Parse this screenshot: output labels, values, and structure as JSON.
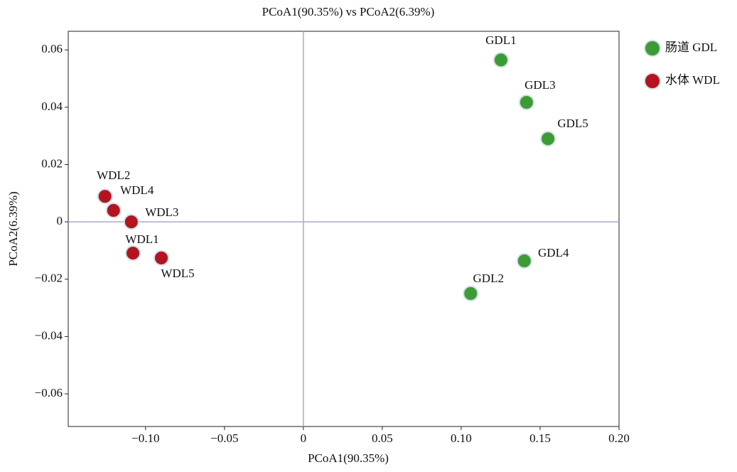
{
  "chart_data": {
    "type": "scatter",
    "title": "PCoA1(90.35%) vs PCoA2(6.39%)",
    "x_label": "PCoA1(90.35%)",
    "y_label": "PCoA2(6.39%)",
    "xlim": [
      -0.149,
      0.2
    ],
    "ylim": [
      -0.0714,
      0.0665
    ],
    "xticks": [
      {
        "value": -0.1,
        "label": "−0.10"
      },
      {
        "value": -0.05,
        "label": "−0.05"
      },
      0,
      0.05,
      {
        "value": 0.1,
        "label": "0.10"
      },
      0.15,
      {
        "value": 0.2,
        "label": "0.20"
      }
    ],
    "yticks": [
      {
        "value": -0.06,
        "label": "−0.06"
      },
      {
        "value": -0.04,
        "label": "−0.04"
      },
      {
        "value": -0.02,
        "label": "−0.02"
      },
      0,
      0.02,
      0.04,
      0.06
    ],
    "hline": 0,
    "vline": 0,
    "series": [
      {
        "name": "肠道 GDL",
        "color": "#3d9b35",
        "labels": [
          "GDL1",
          "GDL2",
          "GDL3",
          "GDL4",
          "GDL5"
        ],
        "x": [
          0.1252,
          0.106,
          0.1414,
          0.14,
          0.155
        ],
        "values": [
          0.0565,
          -0.025,
          0.0417,
          -0.0136,
          0.029
        ]
      },
      {
        "name": "水体 WDL",
        "color": "#b3141f",
        "labels": [
          "WDL1",
          "WDL2",
          "WDL3",
          "WDL4",
          "WDL5"
        ],
        "x": [
          -0.108,
          -0.1257,
          -0.109,
          -0.1203,
          -0.09
        ],
        "values": [
          -0.0109,
          0.0089,
          0.0,
          0.004,
          -0.0126
        ]
      }
    ]
  }
}
